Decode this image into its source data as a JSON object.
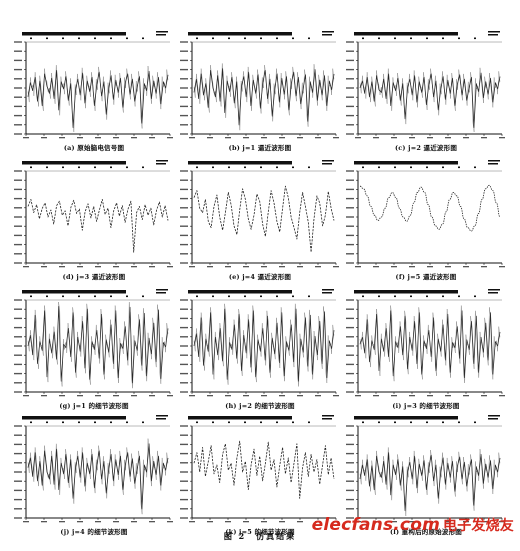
{
  "figure_caption": "图 2　仿真结果",
  "watermark": {
    "text": "elecfans.com",
    "cn": "电子发烧友"
  },
  "colors": {
    "signal": "#222222",
    "frame": "#111111",
    "watermark": "#d62a1e"
  },
  "chart_data": [
    {
      "id": "a",
      "type": "line",
      "caption": "(a) 原始脑电信号图",
      "style": "spiky",
      "series": [
        {
          "values": [
            0.4,
            0.56,
            0.47,
            0.62,
            0.35,
            0.58,
            0.3,
            0.66,
            0.52,
            0.44,
            0.61,
            0.38,
            0.7,
            0.25,
            0.57,
            0.49,
            0.63,
            0.36,
            0.55,
            0.05,
            0.48,
            0.6,
            0.42,
            0.67,
            0.33,
            0.58,
            0.46,
            0.62,
            0.3,
            0.54,
            0.68,
            0.41,
            0.57,
            0.2,
            0.5,
            0.64,
            0.37,
            0.59,
            0.45,
            0.61,
            0.28,
            0.56,
            0.66,
            0.43,
            0.6,
            0.35,
            0.52,
            0.63,
            0.1,
            0.55,
            0.47,
            0.69,
            0.38,
            0.58,
            0.44,
            0.62,
            0.32,
            0.57,
            0.5,
            0.65
          ]
        }
      ]
    },
    {
      "id": "b",
      "type": "line",
      "caption": "(b) j=1 逼近波形图",
      "style": "spiky",
      "series": [
        {
          "values": [
            0.45,
            0.6,
            0.38,
            0.66,
            0.42,
            0.55,
            0.28,
            0.7,
            0.5,
            0.4,
            0.64,
            0.35,
            0.72,
            0.22,
            0.58,
            0.46,
            0.62,
            0.33,
            0.57,
            0.08,
            0.52,
            0.63,
            0.4,
            0.68,
            0.3,
            0.59,
            0.44,
            0.65,
            0.27,
            0.56,
            0.7,
            0.38,
            0.6,
            0.18,
            0.49,
            0.66,
            0.34,
            0.61,
            0.43,
            0.63,
            0.25,
            0.55,
            0.68,
            0.41,
            0.62,
            0.32,
            0.5,
            0.65,
            0.12,
            0.57,
            0.45,
            0.71,
            0.36,
            0.59,
            0.42,
            0.64,
            0.3,
            0.58,
            0.48,
            0.66
          ]
        }
      ]
    },
    {
      "id": "c",
      "type": "line",
      "caption": "(c) j=2 逼近波形图",
      "style": "spiky",
      "series": [
        {
          "values": [
            0.5,
            0.58,
            0.44,
            0.62,
            0.4,
            0.57,
            0.35,
            0.64,
            0.48,
            0.45,
            0.6,
            0.38,
            0.66,
            0.3,
            0.56,
            0.47,
            0.61,
            0.36,
            0.55,
            0.15,
            0.5,
            0.6,
            0.42,
            0.64,
            0.34,
            0.57,
            0.45,
            0.62,
            0.31,
            0.54,
            0.66,
            0.4,
            0.58,
            0.25,
            0.49,
            0.63,
            0.37,
            0.59,
            0.44,
            0.61,
            0.3,
            0.54,
            0.65,
            0.42,
            0.6,
            0.36,
            0.51,
            0.62,
            0.05,
            0.55,
            0.46,
            0.67,
            0.39,
            0.57,
            0.43,
            0.61,
            0.34,
            0.56,
            0.49,
            0.63
          ]
        }
      ]
    },
    {
      "id": "d",
      "type": "line",
      "caption": "(d) j=3 逼近波形图",
      "style": "dashed",
      "series": [
        {
          "values": [
            0.62,
            0.7,
            0.55,
            0.64,
            0.48,
            0.6,
            0.66,
            0.5,
            0.58,
            0.42,
            0.63,
            0.68,
            0.52,
            0.57,
            0.4,
            0.61,
            0.69,
            0.54,
            0.59,
            0.35,
            0.56,
            0.65,
            0.49,
            0.62,
            0.45,
            0.58,
            0.7,
            0.53,
            0.6,
            0.38,
            0.57,
            0.66,
            0.51,
            0.63,
            0.44,
            0.59,
            0.68,
            0.1,
            0.55,
            0.62,
            0.47,
            0.64,
            0.52,
            0.6,
            0.41,
            0.58,
            0.67,
            0.5,
            0.63,
            0.46
          ]
        }
      ]
    },
    {
      "id": "e",
      "type": "line",
      "caption": "(e) j=4 逼近波形图",
      "style": "dashed",
      "series": [
        {
          "values": [
            0.72,
            0.8,
            0.6,
            0.55,
            0.7,
            0.45,
            0.38,
            0.62,
            0.75,
            0.5,
            0.35,
            0.55,
            0.78,
            0.64,
            0.4,
            0.3,
            0.58,
            0.82,
            0.7,
            0.48,
            0.36,
            0.52,
            0.76,
            0.68,
            0.42,
            0.28,
            0.56,
            0.8,
            0.66,
            0.45,
            0.33,
            0.6,
            0.85,
            0.72,
            0.5,
            0.38,
            0.25,
            0.55,
            0.78,
            0.62,
            0.44,
            0.1,
            0.48,
            0.74,
            0.66,
            0.4,
            0.52,
            0.79,
            0.6,
            0.46
          ]
        }
      ]
    },
    {
      "id": "f",
      "type": "line",
      "caption": "(f) j=5 逼近波形图",
      "style": "smooth",
      "series": [
        {
          "values": [
            0.85,
            0.82,
            0.74,
            0.62,
            0.52,
            0.46,
            0.5,
            0.6,
            0.72,
            0.78,
            0.72,
            0.6,
            0.5,
            0.45,
            0.52,
            0.66,
            0.78,
            0.84,
            0.78,
            0.64,
            0.5,
            0.4,
            0.36,
            0.42,
            0.56,
            0.7,
            0.78,
            0.74,
            0.62,
            0.48,
            0.38,
            0.34,
            0.4,
            0.54,
            0.7,
            0.82,
            0.86,
            0.8,
            0.66,
            0.5
          ]
        }
      ]
    },
    {
      "id": "g",
      "type": "line",
      "caption": "(g) j=1 的细节波形图",
      "style": "detail",
      "series": [
        {
          "values": [
            0.5,
            0.62,
            0.4,
            0.85,
            0.3,
            0.55,
            0.45,
            0.9,
            0.15,
            0.58,
            0.42,
            0.66,
            0.35,
            0.95,
            0.1,
            0.52,
            0.48,
            0.7,
            0.38,
            0.88,
            0.2,
            0.6,
            0.44,
            0.78,
            0.25,
            0.92,
            0.12,
            0.55,
            0.46,
            0.68,
            0.36,
            0.86,
            0.18,
            0.57,
            0.43,
            0.74,
            0.3,
            0.9,
            0.14,
            0.53,
            0.47,
            0.72,
            0.34,
            0.94,
            0.08,
            0.56,
            0.45,
            0.8,
            0.28,
            0.87,
            0.16,
            0.59,
            0.41,
            0.76,
            0.32,
            0.91,
            0.13,
            0.54,
            0.49,
            0.7
          ]
        }
      ]
    },
    {
      "id": "h",
      "type": "line",
      "caption": "(h) j=2 的细节波形图",
      "style": "detail",
      "series": [
        {
          "values": [
            0.5,
            0.64,
            0.38,
            0.82,
            0.28,
            0.58,
            0.44,
            0.88,
            0.18,
            0.6,
            0.4,
            0.7,
            0.33,
            0.92,
            0.12,
            0.54,
            0.46,
            0.74,
            0.36,
            0.86,
            0.22,
            0.62,
            0.42,
            0.8,
            0.26,
            0.9,
            0.15,
            0.57,
            0.44,
            0.7,
            0.34,
            0.84,
            0.2,
            0.59,
            0.41,
            0.76,
            0.31,
            0.88,
            0.16,
            0.55,
            0.45,
            0.74,
            0.32,
            0.92,
            0.1,
            0.58,
            0.43,
            0.82,
            0.27,
            0.85,
            0.18,
            0.61,
            0.4,
            0.78,
            0.3,
            0.89,
            0.14,
            0.56,
            0.47,
            0.68
          ]
        }
      ]
    },
    {
      "id": "i",
      "type": "line",
      "caption": "(i) j=3 的细节波形图",
      "style": "detail",
      "series": [
        {
          "values": [
            0.52,
            0.6,
            0.42,
            0.8,
            0.32,
            0.56,
            0.46,
            0.86,
            0.22,
            0.58,
            0.44,
            0.7,
            0.38,
            0.9,
            0.16,
            0.55,
            0.48,
            0.72,
            0.4,
            0.84,
            0.24,
            0.6,
            0.45,
            0.78,
            0.3,
            0.88,
            0.18,
            0.56,
            0.47,
            0.68,
            0.38,
            0.82,
            0.22,
            0.58,
            0.44,
            0.74,
            0.34,
            0.86,
            0.2,
            0.54,
            0.48,
            0.72,
            0.36,
            0.9,
            0.14,
            0.57,
            0.46,
            0.78,
            0.3,
            0.84,
            0.2,
            0.6,
            0.43,
            0.76,
            0.34,
            0.88,
            0.18,
            0.55,
            0.5,
            0.66
          ]
        }
      ]
    },
    {
      "id": "j",
      "type": "line",
      "caption": "(j) j=4 的细节波形图",
      "style": "spiky",
      "series": [
        {
          "values": [
            0.55,
            0.66,
            0.45,
            0.72,
            0.4,
            0.62,
            0.35,
            0.74,
            0.5,
            0.42,
            0.68,
            0.36,
            0.76,
            0.3,
            0.6,
            0.48,
            0.7,
            0.38,
            0.64,
            0.2,
            0.55,
            0.68,
            0.44,
            0.72,
            0.34,
            0.6,
            0.48,
            0.7,
            0.32,
            0.58,
            0.74,
            0.42,
            0.62,
            0.26,
            0.54,
            0.7,
            0.4,
            0.64,
            0.47,
            0.68,
            0.3,
            0.58,
            0.72,
            0.45,
            0.65,
            0.37,
            0.54,
            0.68,
            0.08,
            0.58,
            0.5,
            0.82,
            0.4,
            0.62,
            0.47,
            0.68,
            0.35,
            0.6,
            0.52,
            0.66
          ]
        }
      ]
    },
    {
      "id": "k",
      "type": "line",
      "caption": "(k) j=5 的细节波形图",
      "style": "dashed",
      "series": [
        {
          "values": [
            0.6,
            0.72,
            0.5,
            0.78,
            0.45,
            0.62,
            0.8,
            0.48,
            0.58,
            0.38,
            0.7,
            0.82,
            0.52,
            0.6,
            0.35,
            0.66,
            0.85,
            0.5,
            0.62,
            0.3,
            0.58,
            0.76,
            0.46,
            0.68,
            0.4,
            0.6,
            0.84,
            0.52,
            0.64,
            0.33,
            0.57,
            0.78,
            0.48,
            0.66,
            0.38,
            0.6,
            0.82,
            0.2,
            0.55,
            0.72,
            0.45,
            0.7,
            0.5,
            0.64,
            0.36,
            0.58,
            0.8,
            0.47,
            0.66,
            0.42
          ]
        }
      ]
    },
    {
      "id": "l",
      "type": "line",
      "caption": "(l) 重构后的原始波形图",
      "style": "spiky",
      "series": [
        {
          "values": [
            0.42,
            0.58,
            0.46,
            0.64,
            0.34,
            0.57,
            0.3,
            0.68,
            0.5,
            0.44,
            0.62,
            0.36,
            0.72,
            0.24,
            0.58,
            0.47,
            0.64,
            0.35,
            0.56,
            0.06,
            0.5,
            0.61,
            0.42,
            0.68,
            0.32,
            0.59,
            0.46,
            0.63,
            0.3,
            0.55,
            0.69,
            0.4,
            0.58,
            0.2,
            0.5,
            0.66,
            0.36,
            0.6,
            0.44,
            0.62,
            0.28,
            0.56,
            0.67,
            0.42,
            0.61,
            0.34,
            0.53,
            0.64,
            0.12,
            0.56,
            0.46,
            0.7,
            0.37,
            0.59,
            0.44,
            0.63,
            0.31,
            0.58,
            0.5,
            0.66
          ]
        }
      ]
    }
  ]
}
